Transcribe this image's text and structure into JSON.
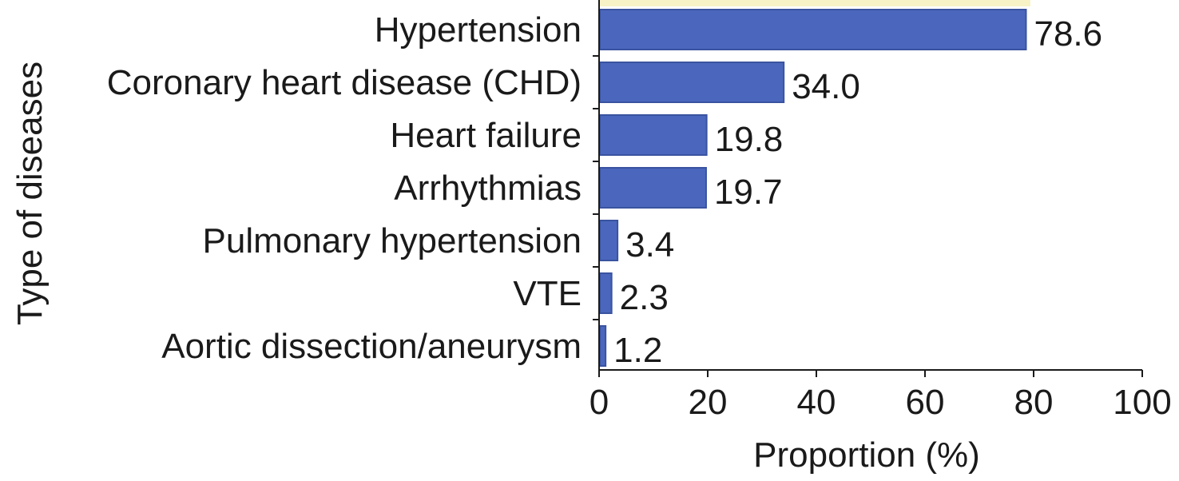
{
  "chart_data": {
    "type": "bar",
    "orientation": "horizontal",
    "categories": [
      "Hypertension",
      "Coronary heart disease (CHD)",
      "Heart failure",
      "Arrhythmias",
      "Pulmonary hypertension",
      "VTE",
      "Aortic dissection/aneurysm"
    ],
    "values": [
      78.6,
      34.0,
      19.8,
      19.7,
      3.4,
      2.3,
      1.2
    ],
    "value_labels": [
      "78.6",
      "34.0",
      "19.8",
      "19.7",
      "3.4",
      "2.3",
      "1.2"
    ],
    "xlabel": "Proportion (%)",
    "ylabel": "Type of diseases",
    "xlim": [
      0,
      100
    ],
    "xticks": [
      0,
      20,
      40,
      60,
      80,
      100
    ],
    "xtick_labels": [
      "0",
      "20",
      "40",
      "60",
      "80",
      "100"
    ],
    "grid": false,
    "legend": "none",
    "bar_color": "#4a67bd",
    "bar_edge_color": "#3a53a0",
    "highlight_color": "#f7f3c7"
  }
}
